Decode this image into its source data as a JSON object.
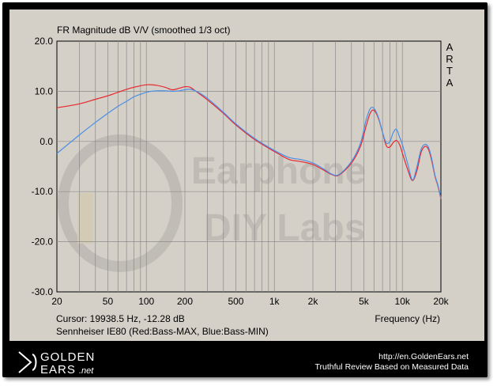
{
  "chart_data": {
    "type": "line",
    "title": "FR Magnitude dB V/V (smoothed 1/3 oct)",
    "side_label": "ARTA",
    "xlabel": "Frequency (Hz)",
    "ylabel": "",
    "x_scale": "log",
    "xlim": [
      20,
      20000
    ],
    "ylim": [
      -30,
      20
    ],
    "x_ticks": [
      20,
      50,
      100,
      200,
      500,
      1000,
      2000,
      5000,
      10000,
      20000
    ],
    "x_tick_labels": [
      "20",
      "50",
      "100",
      "200",
      "500",
      "1k",
      "2k",
      "5k",
      "10k",
      "20k"
    ],
    "y_ticks": [
      -30,
      -20,
      -10,
      0,
      10,
      20
    ],
    "y_tick_labels": [
      "-30.0",
      "-20.0",
      "-10.0",
      "0.0",
      "10.0",
      "20.0"
    ],
    "grid": true,
    "cursor_text": "Cursor: 19938.5 Hz, -12.28 dB",
    "caption": "Sennheiser IE80 (Red:Bass-MAX, Blue:Bass-MIN)",
    "watermark": [
      "Earphone",
      "DIY Labs"
    ],
    "series": [
      {
        "color": "#e8262d",
        "x": [
          20,
          30,
          40,
          50,
          60,
          70,
          80,
          90,
          100,
          110,
          120,
          140,
          160,
          180,
          200,
          220,
          250,
          300,
          400,
          500,
          700,
          1000,
          1300,
          1600,
          2000,
          2500,
          2800,
          3200,
          4000,
          4700,
          5200,
          5600,
          6000,
          6500,
          7000,
          7500,
          8000,
          8500,
          9000,
          9500,
          10000,
          11000,
          12000,
          13000,
          14000,
          15000,
          16000,
          17000,
          18000,
          19000,
          20000
        ],
        "y": [
          6.7,
          7.5,
          8.4,
          9.1,
          9.8,
          10.4,
          10.8,
          11.1,
          11.3,
          11.3,
          11.2,
          10.8,
          10.3,
          10.6,
          10.9,
          10.8,
          9.8,
          8.3,
          5.6,
          3.3,
          0.4,
          -2.0,
          -3.6,
          -4.0,
          -4.6,
          -5.9,
          -6.6,
          -6.7,
          -4.3,
          -1.0,
          3.0,
          5.6,
          6.2,
          4.6,
          1.8,
          -0.9,
          -1.1,
          -0.2,
          0.2,
          -0.6,
          -2.3,
          -5.6,
          -7.8,
          -5.8,
          -2.2,
          -1.0,
          -1.6,
          -4.0,
          -7.0,
          -9.0,
          -11.5
        ]
      },
      {
        "color": "#4a8ee6",
        "x": [
          20,
          30,
          40,
          50,
          60,
          70,
          80,
          90,
          100,
          110,
          120,
          140,
          160,
          180,
          200,
          220,
          250,
          300,
          400,
          500,
          700,
          1000,
          1300,
          1600,
          2000,
          2500,
          2800,
          3200,
          4000,
          4700,
          5200,
          5600,
          6000,
          6500,
          7000,
          7500,
          8000,
          8500,
          9000,
          9500,
          10000,
          11000,
          12000,
          13000,
          14000,
          15000,
          16000,
          17000,
          18000,
          19000,
          20000
        ],
        "y": [
          -2.4,
          1.3,
          3.8,
          5.6,
          7.0,
          8.0,
          8.9,
          9.4,
          9.8,
          10.0,
          10.1,
          10.1,
          10.0,
          10.1,
          10.3,
          10.4,
          9.9,
          8.6,
          5.8,
          3.5,
          0.6,
          -1.8,
          -3.2,
          -3.6,
          -4.3,
          -5.7,
          -6.5,
          -6.6,
          -4.0,
          -0.4,
          4.2,
          6.5,
          6.6,
          4.8,
          1.8,
          -0.3,
          0.0,
          1.8,
          2.4,
          0.9,
          -0.6,
          -4.4,
          -7.7,
          -5.0,
          -1.6,
          -0.6,
          -1.2,
          -3.6,
          -6.8,
          -8.8,
          -11.3
        ]
      }
    ]
  },
  "footer": {
    "brand_line1": "GOLDEN",
    "brand_line2": "EARS",
    "brand_suffix": ".net",
    "url": "http://en.GoldenEars.net",
    "tagline": "Truthful Review Based on Measured Data"
  }
}
